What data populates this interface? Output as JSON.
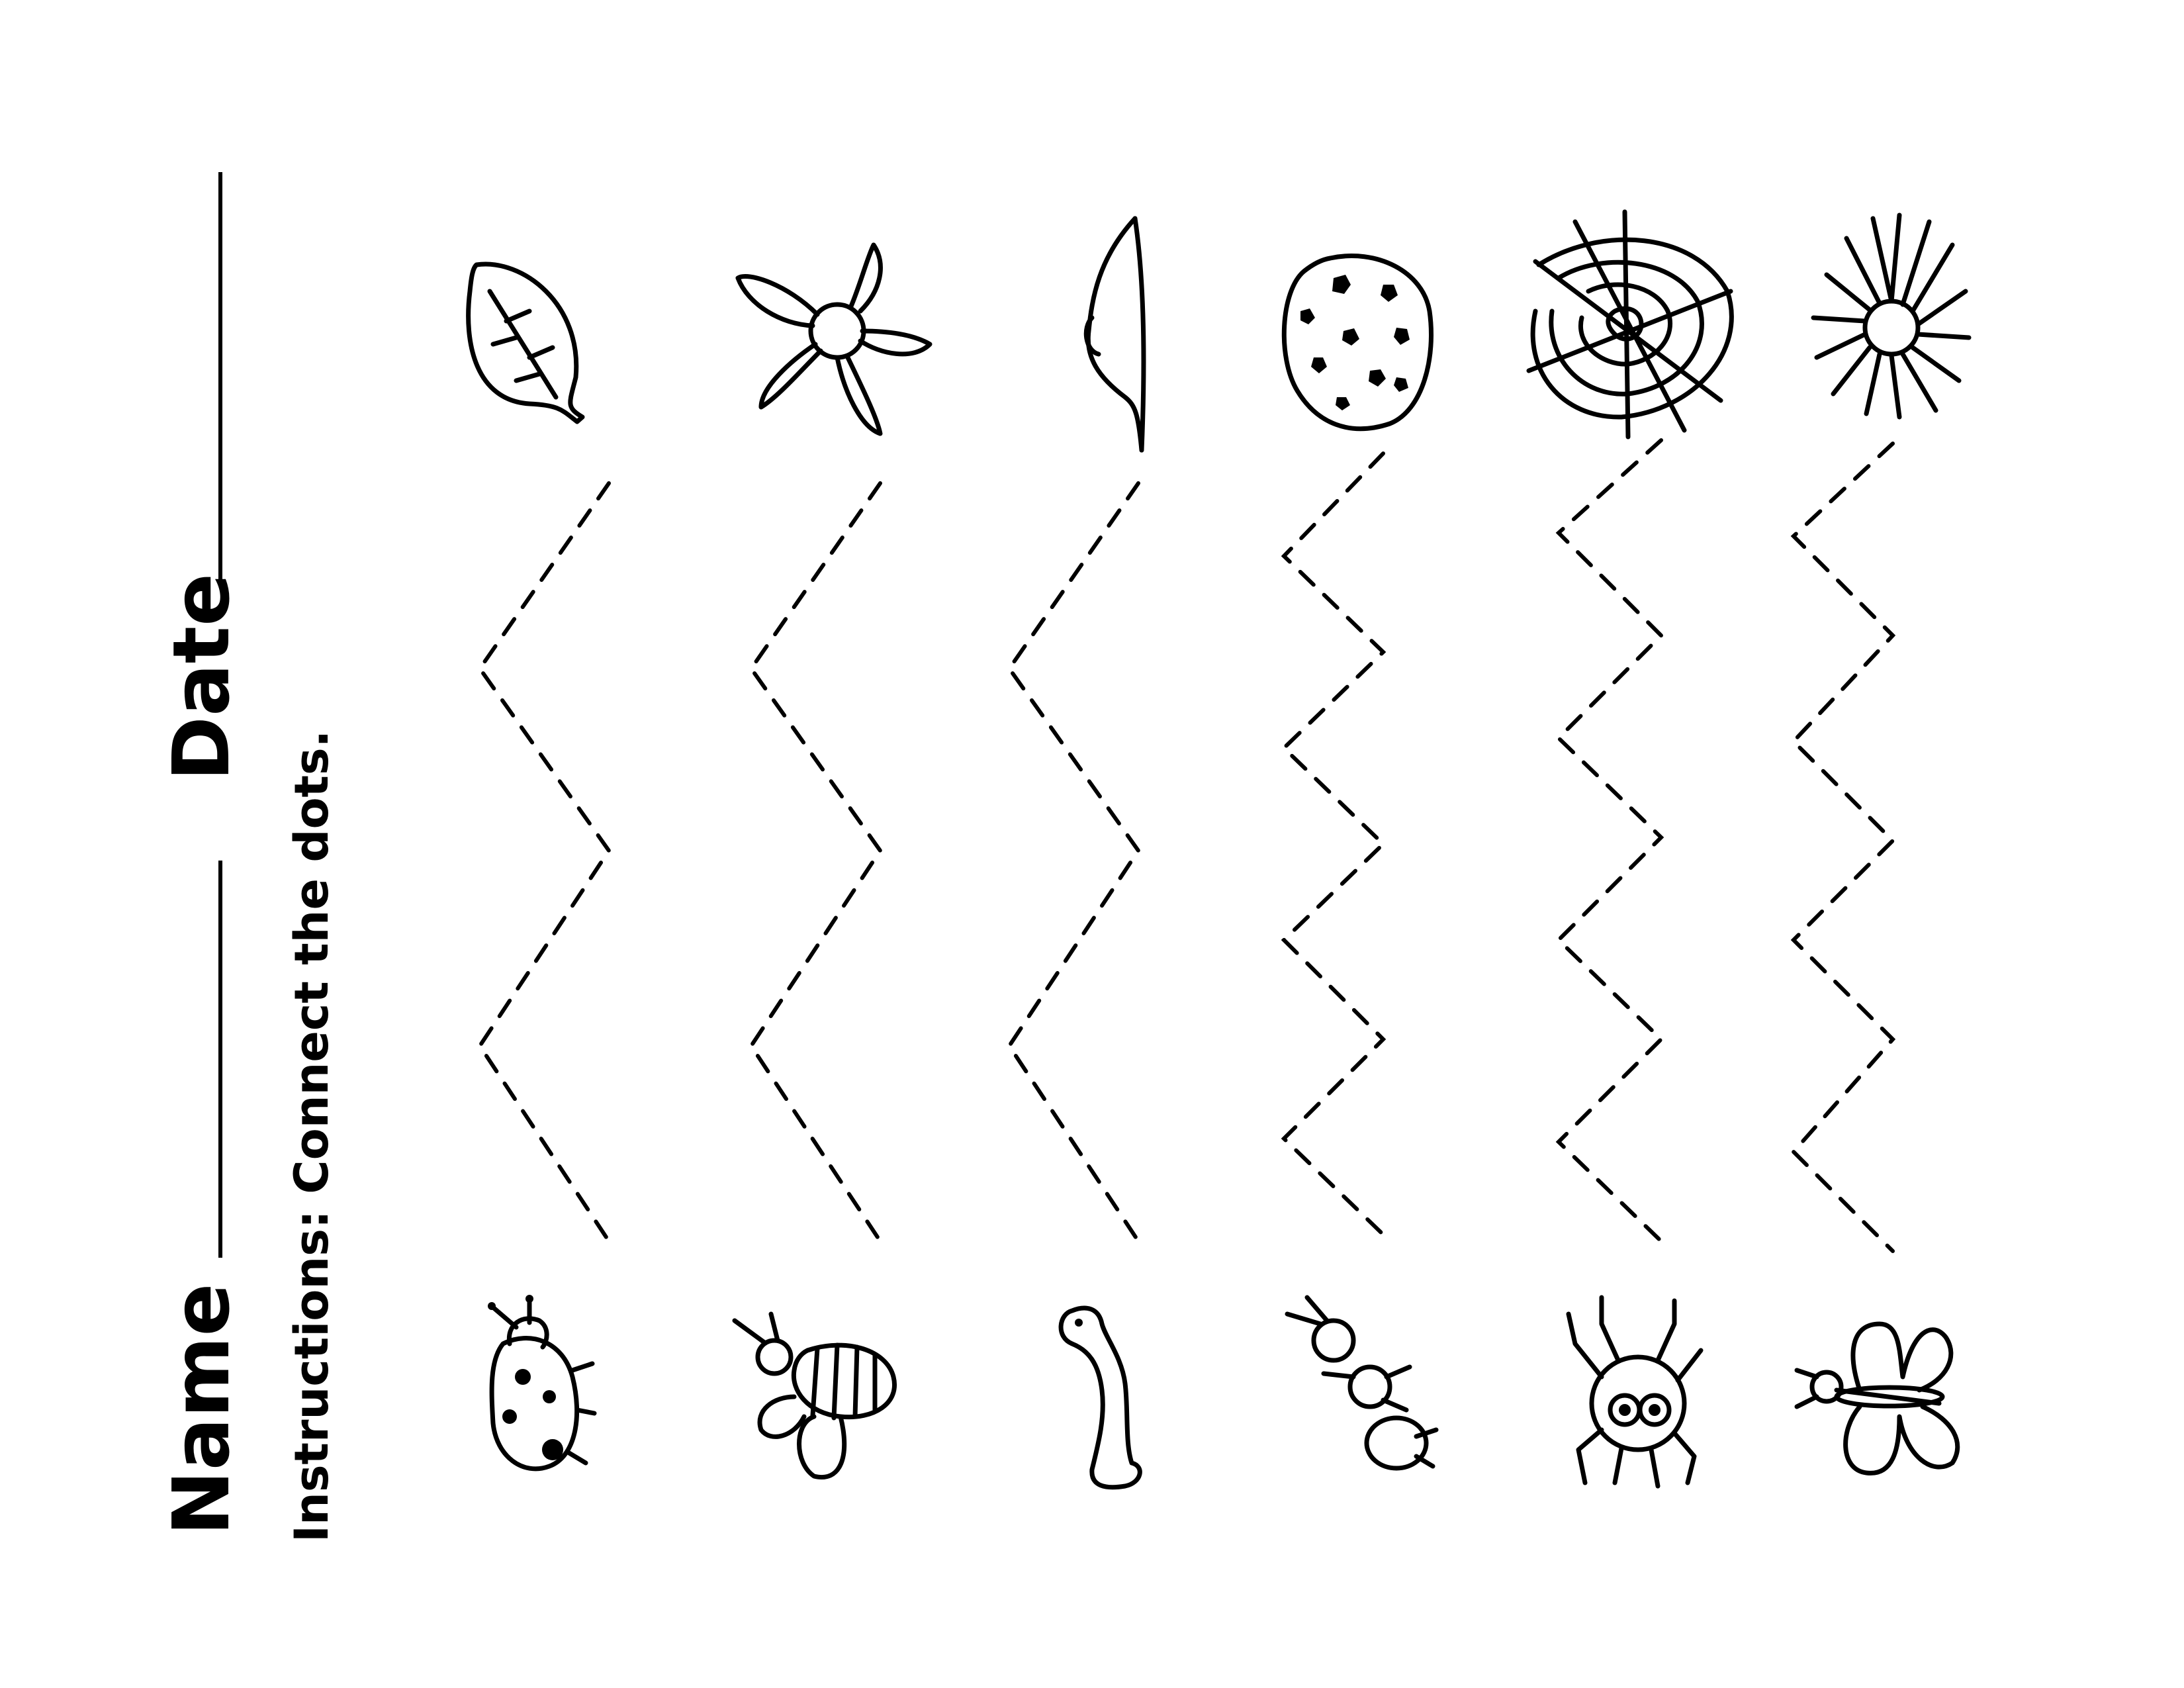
{
  "worksheet": {
    "name_label": "Name",
    "date_label": "Date",
    "instructions": "Instructions: Connect the dots."
  },
  "columns": [
    {
      "top_picture": "leaf-icon",
      "bottom_picture": "ladybug-icon"
    },
    {
      "top_picture": "flower-icon",
      "bottom_picture": "bee-icon"
    },
    {
      "top_picture": "leaf-edge-icon",
      "bottom_picture": "worm-icon"
    },
    {
      "top_picture": "cookie-icon",
      "bottom_picture": "ant-icon"
    },
    {
      "top_picture": "spider-web-icon",
      "bottom_picture": "spider-icon"
    },
    {
      "top_picture": "daisy-icon",
      "bottom_picture": "butterfly-icon"
    }
  ]
}
